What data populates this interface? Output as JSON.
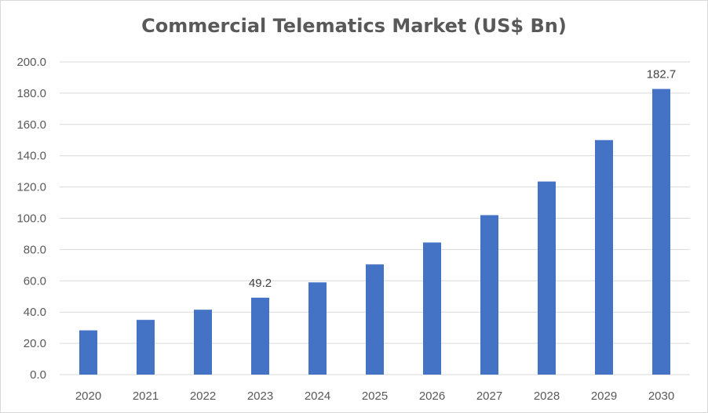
{
  "chart_data": {
    "type": "bar",
    "title": "Commercial Telematics Market (US$ Bn)",
    "categories": [
      "2020",
      "2021",
      "2022",
      "2023",
      "2024",
      "2025",
      "2026",
      "2027",
      "2028",
      "2029",
      "2030"
    ],
    "values": [
      28.3,
      35.0,
      41.5,
      49.2,
      59.0,
      70.5,
      84.5,
      102.0,
      123.5,
      150.0,
      182.7
    ],
    "data_labels": [
      {
        "category": "2023",
        "text": "49.2"
      },
      {
        "category": "2030",
        "text": "182.7"
      }
    ],
    "y_ticks": [
      "0.0",
      "20.0",
      "40.0",
      "60.0",
      "80.0",
      "100.0",
      "120.0",
      "140.0",
      "160.0",
      "180.0",
      "200.0"
    ],
    "ylim": [
      0,
      200
    ],
    "xlabel": "",
    "ylabel": "",
    "grid": true,
    "legend": "none",
    "colors": {
      "bar": "#4472c4",
      "grid": "#d9d9d9",
      "text": "#595959"
    }
  }
}
